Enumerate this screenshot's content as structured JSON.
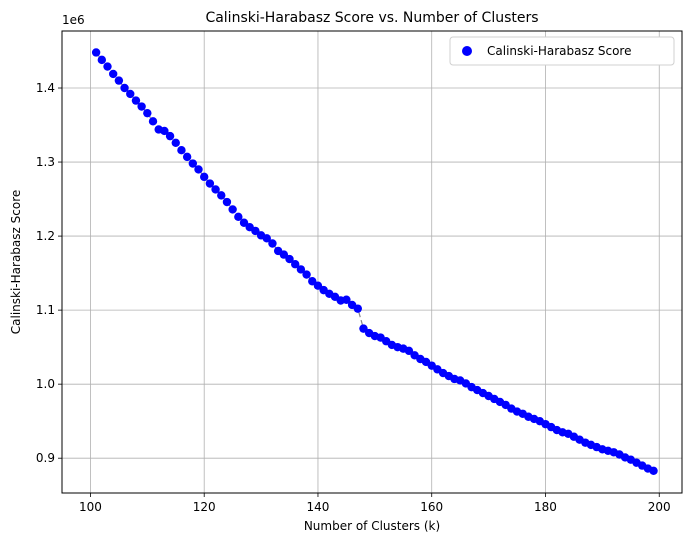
{
  "chart_data": {
    "type": "scatter",
    "title": "Calinski-Harabasz Score vs. Number of Clusters",
    "xlabel": "Number of Clusters (k)",
    "ylabel": "Calinski-Harabasz Score",
    "y_offset_label": "1e6",
    "xlim": [
      95,
      204
    ],
    "ylim": [
      0.853,
      1.477
    ],
    "x_ticks": [
      100,
      120,
      140,
      160,
      180,
      200
    ],
    "x_tick_labels": [
      "100",
      "120",
      "140",
      "160",
      "180",
      "200"
    ],
    "y_ticks": [
      0.9,
      1.0,
      1.1,
      1.2,
      1.3,
      1.4
    ],
    "y_tick_labels": [
      "0.9",
      "1.0",
      "1.1",
      "1.2",
      "1.3",
      "1.4"
    ],
    "grid": true,
    "legend_position": "top-right",
    "connecting_line": "dashed",
    "colors": {
      "points": "#0000ff",
      "line": "#888888",
      "grid": "#b0b0b0"
    },
    "series": [
      {
        "name": "Calinski-Harabasz Score",
        "x": [
          101,
          102,
          103,
          104,
          105,
          106,
          107,
          108,
          109,
          110,
          111,
          112,
          113,
          114,
          115,
          116,
          117,
          118,
          119,
          120,
          121,
          122,
          123,
          124,
          125,
          126,
          127,
          128,
          129,
          130,
          131,
          132,
          133,
          134,
          135,
          136,
          137,
          138,
          139,
          140,
          141,
          142,
          143,
          144,
          145,
          146,
          147,
          148,
          149,
          150,
          151,
          152,
          153,
          154,
          155,
          156,
          157,
          158,
          159,
          160,
          161,
          162,
          163,
          164,
          165,
          166,
          167,
          168,
          169,
          170,
          171,
          172,
          173,
          174,
          175,
          176,
          177,
          178,
          179,
          180,
          181,
          182,
          183,
          184,
          185,
          186,
          187,
          188,
          189,
          190,
          191,
          192,
          193,
          194,
          195,
          196,
          197,
          198,
          199
        ],
        "y": [
          1.448,
          1.438,
          1.429,
          1.419,
          1.41,
          1.4,
          1.392,
          1.383,
          1.375,
          1.366,
          1.355,
          1.344,
          1.342,
          1.335,
          1.326,
          1.316,
          1.307,
          1.298,
          1.29,
          1.28,
          1.271,
          1.263,
          1.255,
          1.246,
          1.236,
          1.226,
          1.218,
          1.212,
          1.207,
          1.201,
          1.197,
          1.19,
          1.18,
          1.175,
          1.169,
          1.162,
          1.155,
          1.148,
          1.139,
          1.133,
          1.127,
          1.122,
          1.118,
          1.113,
          1.114,
          1.107,
          1.102,
          1.075,
          1.069,
          1.065,
          1.063,
          1.058,
          1.053,
          1.05,
          1.048,
          1.045,
          1.039,
          1.034,
          1.03,
          1.025,
          1.02,
          1.015,
          1.011,
          1.007,
          1.005,
          1.001,
          0.996,
          0.992,
          0.988,
          0.984,
          0.98,
          0.976,
          0.972,
          0.967,
          0.963,
          0.96,
          0.956,
          0.953,
          0.95,
          0.946,
          0.942,
          0.938,
          0.935,
          0.933,
          0.929,
          0.925,
          0.921,
          0.918,
          0.915,
          0.912,
          0.91,
          0.908,
          0.905,
          0.901,
          0.898,
          0.894,
          0.89,
          0.886,
          0.883
        ]
      }
    ]
  }
}
